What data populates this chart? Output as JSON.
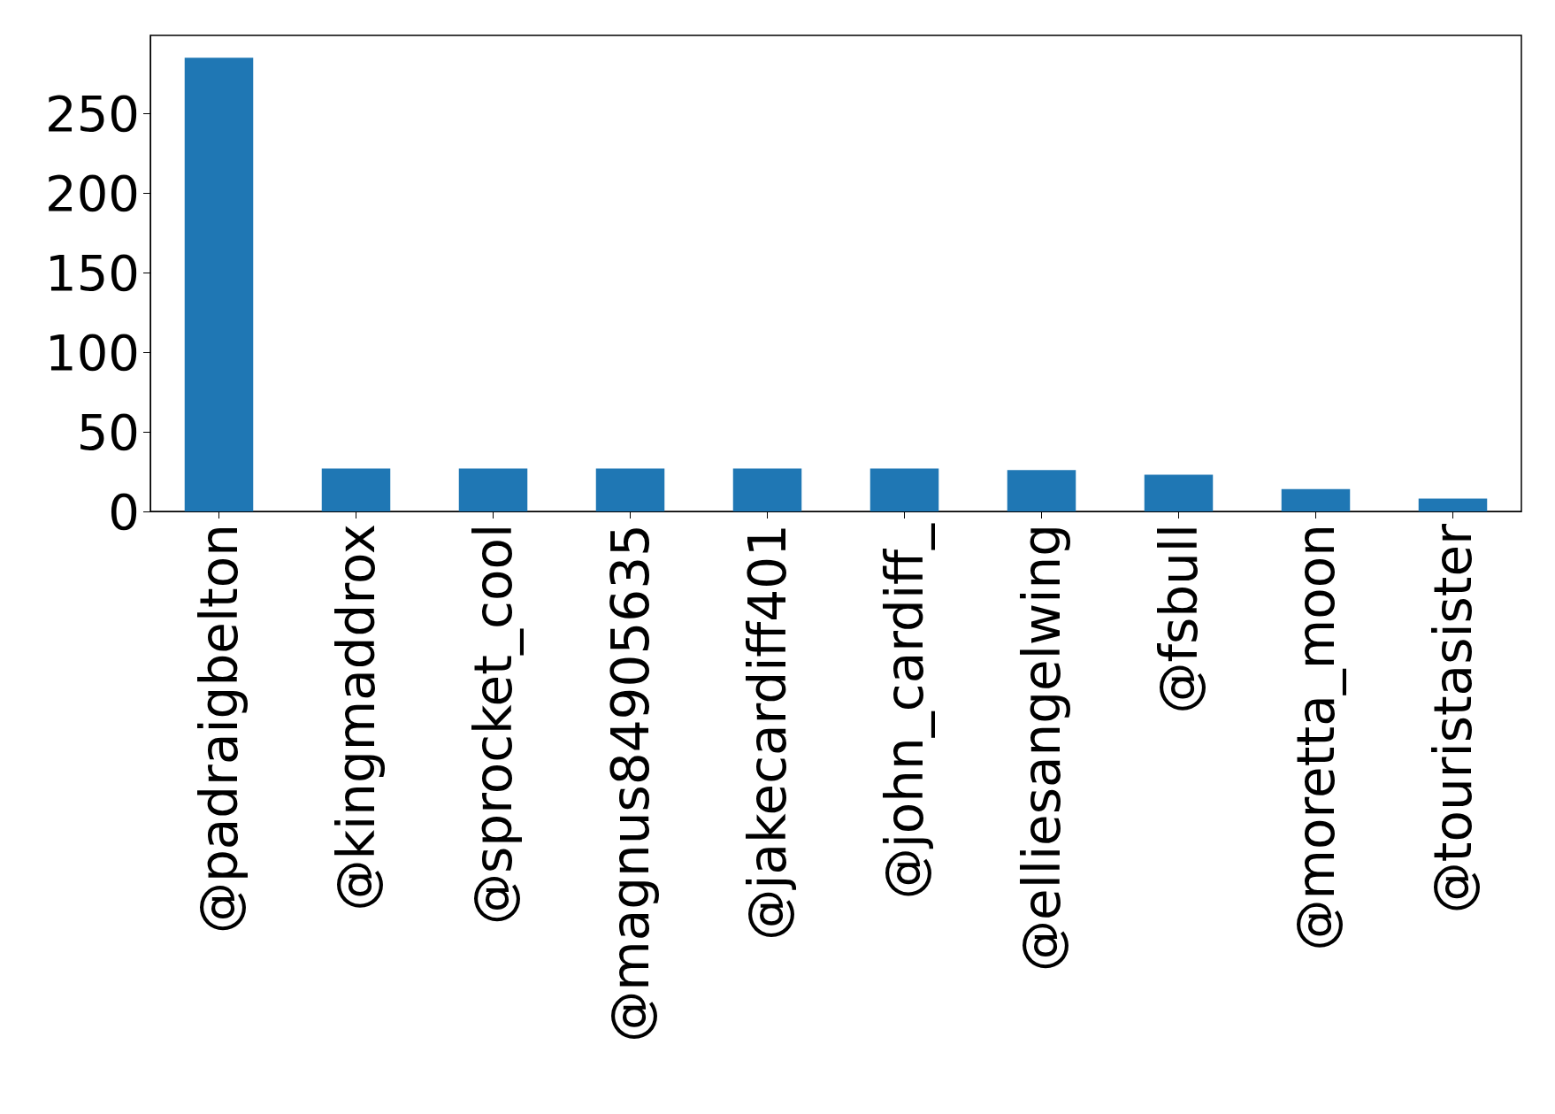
{
  "chart_data": {
    "type": "bar",
    "categories": [
      "@padraigbelton",
      "@kingmaddrox",
      "@sprocket_cool",
      "@magnus84905635",
      "@jakecardiff401",
      "@john_cardiff_",
      "@elliesangelwing",
      "@fsbull",
      "@moretta_moon",
      "@touristasister"
    ],
    "values": [
      285,
      27,
      27,
      27,
      27,
      27,
      26,
      23,
      14,
      8
    ],
    "color": "#1f77b4",
    "ylim": [
      0,
      299
    ],
    "yticks": [
      0,
      50,
      100,
      150,
      200,
      250
    ],
    "grid": false
  }
}
